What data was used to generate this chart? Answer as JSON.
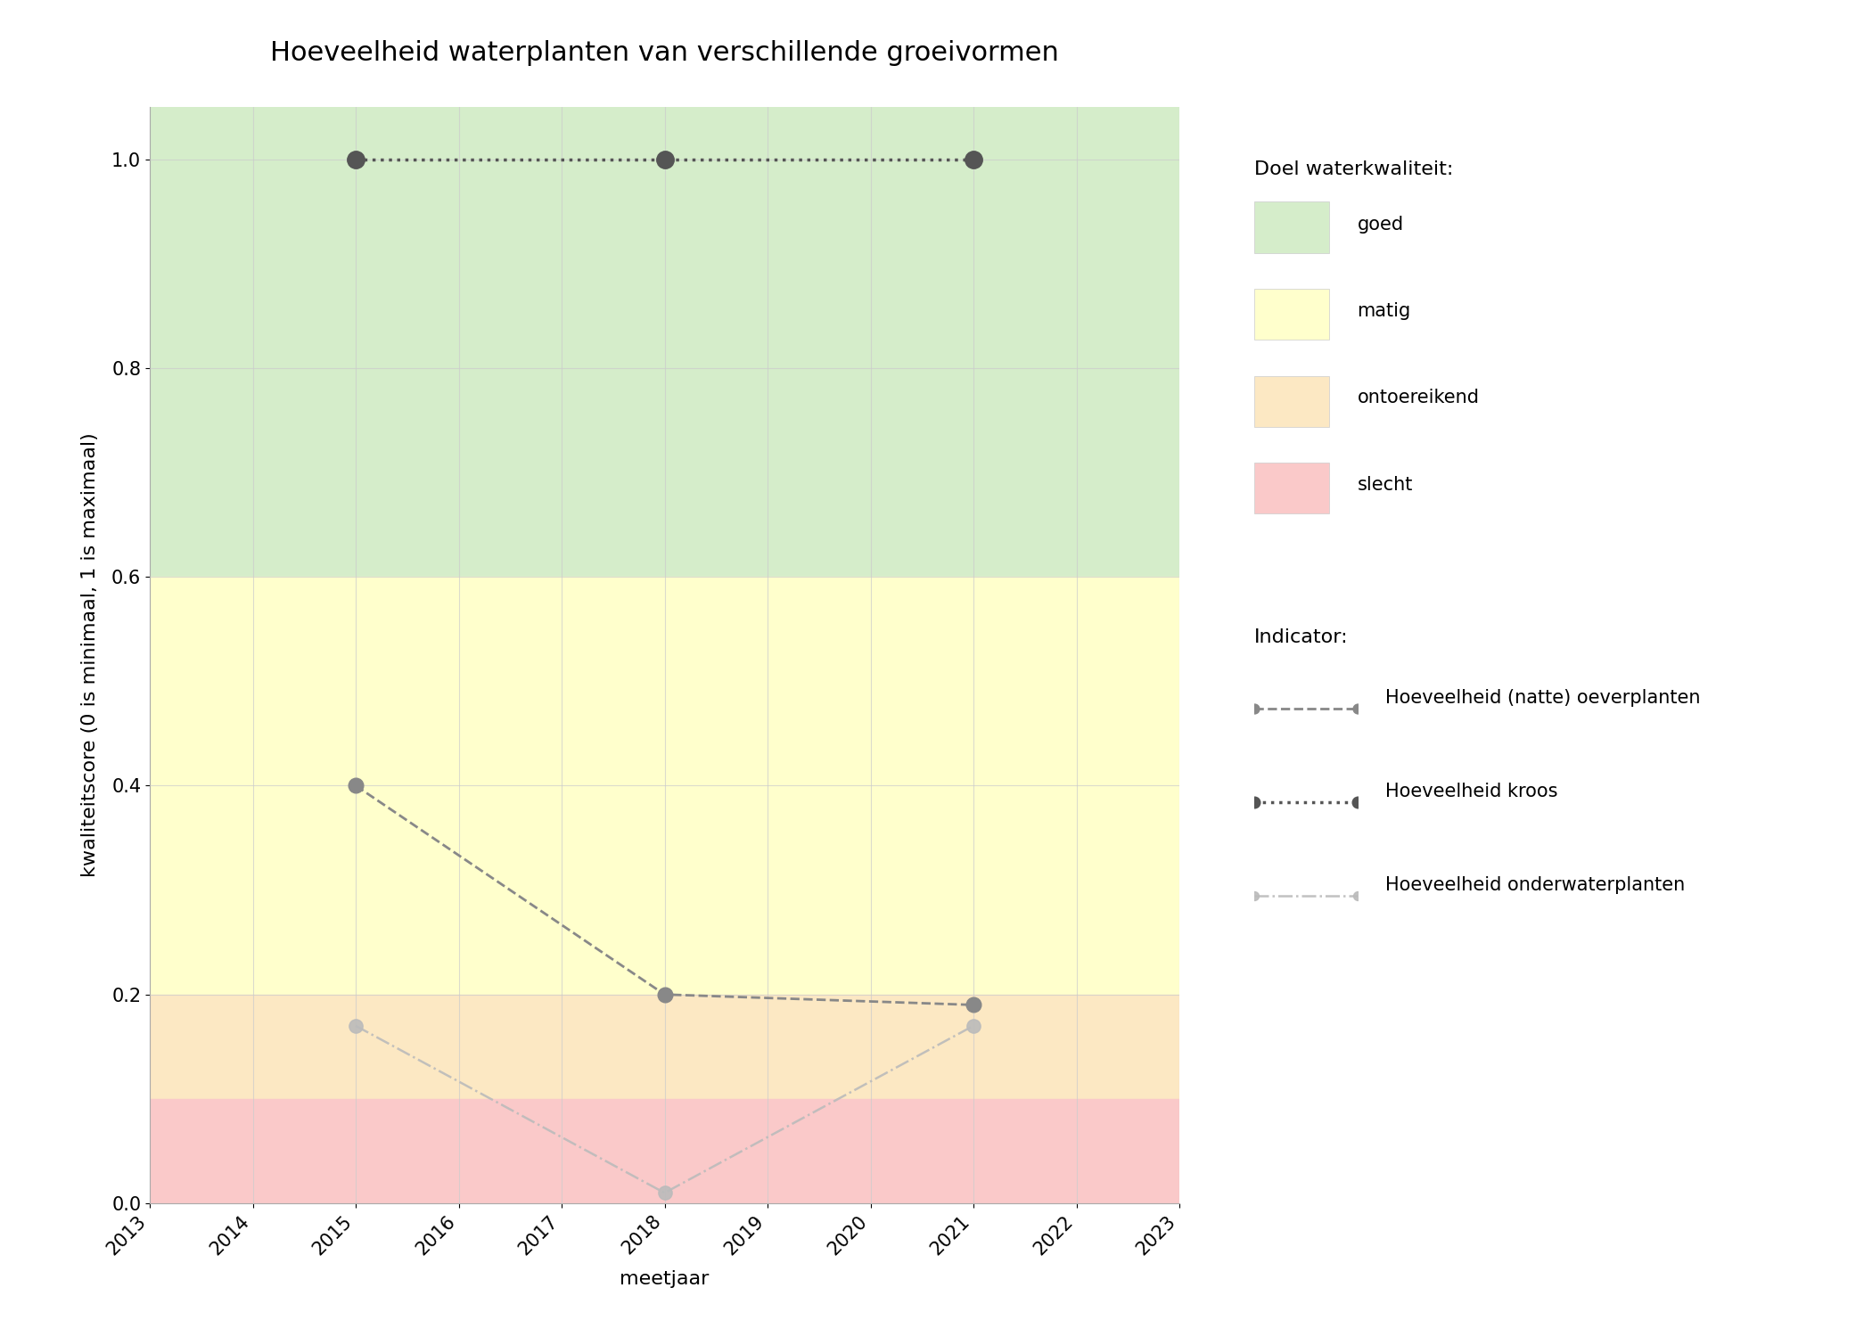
{
  "title": "Hoeveelheid waterplanten van verschillende groeivormen",
  "xlabel": "meetjaar",
  "ylabel": "kwaliteitscore (0 is minimaal, 1 is maximaal)",
  "xlim": [
    2013,
    2023
  ],
  "ylim": [
    0.0,
    1.05
  ],
  "yticks": [
    0.0,
    0.2,
    0.4,
    0.6,
    0.8,
    1.0
  ],
  "xticks": [
    2013,
    2014,
    2015,
    2016,
    2017,
    2018,
    2019,
    2020,
    2021,
    2022,
    2023
  ],
  "bg_bands": [
    {
      "ymin": 0.6,
      "ymax": 1.05,
      "color": "#d5edca",
      "label": "goed"
    },
    {
      "ymin": 0.2,
      "ymax": 0.6,
      "color": "#ffffcc",
      "label": "matig"
    },
    {
      "ymin": 0.1,
      "ymax": 0.2,
      "color": "#fce8c3",
      "label": "ontoereikend"
    },
    {
      "ymin": 0.0,
      "ymax": 0.1,
      "color": "#fac9c9",
      "label": "slecht"
    }
  ],
  "series": [
    {
      "name": "Hoeveelheid (natte) oeverplanten",
      "x": [
        2015,
        2018,
        2021
      ],
      "y": [
        0.4,
        0.2,
        0.19
      ],
      "color": "#888888",
      "linestyle": "dashed",
      "linewidth": 2.0,
      "markersize": 12,
      "alpha": 1.0,
      "zorder": 3
    },
    {
      "name": "Hoeveelheid kroos",
      "x": [
        2015,
        2018,
        2021
      ],
      "y": [
        1.0,
        1.0,
        1.0
      ],
      "color": "#555555",
      "linestyle": "dotted",
      "linewidth": 2.5,
      "markersize": 14,
      "alpha": 1.0,
      "zorder": 4
    },
    {
      "name": "Hoeveelheid onderwaterplanten",
      "x": [
        2015,
        2018,
        2021
      ],
      "y": [
        0.17,
        0.01,
        0.17
      ],
      "color": "#bbbbbb",
      "linestyle": "dashdot",
      "linewidth": 1.8,
      "markersize": 11,
      "alpha": 0.9,
      "zorder": 2
    }
  ],
  "legend_quality_title": "Doel waterkwaliteit:",
  "legend_indicator_title": "Indicator:",
  "background_color": "#ffffff",
  "grid_color": "#cccccc",
  "grid_alpha": 0.7,
  "title_fontsize": 22,
  "axis_label_fontsize": 16,
  "tick_fontsize": 15,
  "legend_fontsize": 15,
  "legend_title_fontsize": 16
}
